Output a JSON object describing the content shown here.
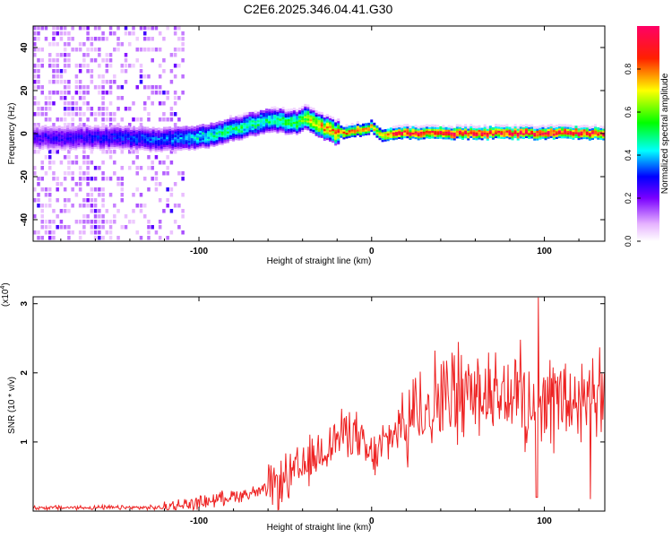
{
  "title": "C2E6.2025.346.04.41.G30",
  "chart_data": [
    {
      "type": "heatmap",
      "xlabel": "Height of straight line (km)",
      "ylabel": "Frequency (Hz)",
      "xlim": [
        -196,
        135
      ],
      "ylim": [
        -50,
        50
      ],
      "xticks": [
        -100,
        0,
        100
      ],
      "yticks": [
        -40,
        -20,
        0,
        20,
        40
      ],
      "ridge": {
        "x": [
          -196,
          -150,
          -120,
          -100,
          -80,
          -60,
          -45,
          -38,
          -30,
          -20,
          -10,
          0,
          5,
          10,
          20,
          40,
          60,
          80,
          100,
          120,
          135
        ],
        "freq": [
          -2,
          -2,
          -3,
          -2,
          2,
          6,
          5,
          7,
          3,
          0,
          1,
          3,
          -1,
          0,
          0,
          0,
          0,
          0,
          0,
          0,
          0
        ],
        "amplitude": [
          0.25,
          0.3,
          0.35,
          0.45,
          0.5,
          0.5,
          0.55,
          0.65,
          0.75,
          0.8,
          0.8,
          0.7,
          0.75,
          0.85,
          0.92,
          0.95,
          0.95,
          0.95,
          0.95,
          0.95,
          0.95
        ]
      },
      "noise_region_km": [
        -196,
        -110
      ]
    },
    {
      "type": "colorbar",
      "label": "Normalized spectral amplitude",
      "ticks": [
        "0.0",
        "0.2",
        "0.4",
        "0.6",
        "0.8"
      ],
      "range": [
        0,
        1
      ],
      "colors": [
        "#ffffff",
        "#0000ff",
        "#00ffff",
        "#00ff00",
        "#ffff00",
        "#ff0000",
        "#ff0066"
      ]
    },
    {
      "type": "line",
      "xlabel": "Height of straight line (km)",
      "ylabel": "SNR (10 * v/v)",
      "y_multiplier": "(x10",
      "y_multiplier_exp": "4",
      "y_multiplier_close": ")",
      "xlim": [
        -196,
        135
      ],
      "ylim": [
        0,
        3.1
      ],
      "xticks": [
        -100,
        0,
        100
      ],
      "yticks": [
        1,
        2,
        3
      ],
      "line_color": "#ee2222",
      "envelope": {
        "x": [
          -196,
          -120,
          -100,
          -80,
          -60,
          -50,
          -40,
          -30,
          -20,
          -12,
          -5,
          0,
          10,
          20,
          30,
          40,
          50,
          60,
          70,
          80,
          90,
          95,
          100,
          110,
          120,
          135
        ],
        "y": [
          0.05,
          0.05,
          0.12,
          0.22,
          0.3,
          0.45,
          0.6,
          0.85,
          1.05,
          1.2,
          0.9,
          0.75,
          1.05,
          1.35,
          1.55,
          1.65,
          1.7,
          1.75,
          1.7,
          1.68,
          1.65,
          1.6,
          1.62,
          1.6,
          1.55,
          1.55
        ]
      },
      "peak": {
        "x": 96,
        "y": 3.1
      }
    }
  ]
}
